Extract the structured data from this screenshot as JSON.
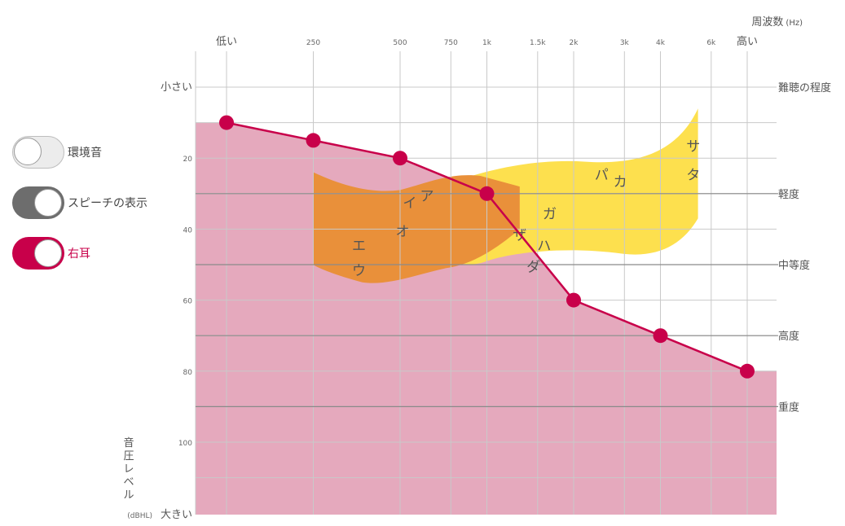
{
  "toggles": [
    {
      "label": "環境音",
      "state": "off"
    },
    {
      "label": "スピーチの表示",
      "state": "on"
    },
    {
      "label": "右耳",
      "state": "on"
    }
  ],
  "colors": {
    "accent": "#c8004a",
    "hearing_area": "#e5a9bd",
    "speech_yellow": "#fde04e",
    "speech_orange": "#e9903a",
    "toggle_gray": "#6d6d6d"
  },
  "chart_data": {
    "type": "line",
    "x_scale": "log",
    "y_inverted": true,
    "grid": true,
    "x_axis": {
      "title": "周波数",
      "unit": "(Hz)",
      "low_label": "低い",
      "high_label": "高い",
      "ticks": [
        {
          "freq": 250,
          "label": "250"
        },
        {
          "freq": 500,
          "label": "500"
        },
        {
          "freq": 750,
          "label": "750"
        },
        {
          "freq": 1000,
          "label": "1k"
        },
        {
          "freq": 1500,
          "label": "1.5k"
        },
        {
          "freq": 2000,
          "label": "2k"
        },
        {
          "freq": 3000,
          "label": "3k"
        },
        {
          "freq": 4000,
          "label": "4k"
        },
        {
          "freq": 6000,
          "label": "6k"
        }
      ]
    },
    "y_axis": {
      "title_chars": [
        "音",
        "圧",
        "レ",
        "ベ",
        "ル"
      ],
      "unit": "(dBHL)",
      "top_label": "小さい",
      "bottom_label": "大きい",
      "ticks": [
        20,
        40,
        60,
        80,
        100
      ],
      "ylim": [
        -10,
        120
      ]
    },
    "severity": {
      "title": "難聴の程度",
      "levels": [
        {
          "label": "軽度",
          "db": 30
        },
        {
          "label": "中等度",
          "db": 50
        },
        {
          "label": "高度",
          "db": 70
        },
        {
          "label": "重度",
          "db": 90
        }
      ]
    },
    "series": [
      {
        "name": "右耳",
        "x": [
          125,
          250,
          500,
          1000,
          2000,
          4000,
          8000
        ],
        "y": [
          10,
          15,
          20,
          30,
          60,
          70,
          80
        ]
      }
    ],
    "speech_sounds": [
      {
        "text": "ア",
        "freq": 620,
        "db": 32
      },
      {
        "text": "イ",
        "freq": 540,
        "db": 34
      },
      {
        "text": "オ",
        "freq": 510,
        "db": 42
      },
      {
        "text": "エ",
        "freq": 360,
        "db": 46
      },
      {
        "text": "ウ",
        "freq": 360,
        "db": 53
      },
      {
        "text": "ガ",
        "freq": 1650,
        "db": 37
      },
      {
        "text": "ザ",
        "freq": 1300,
        "db": 43
      },
      {
        "text": "ハ",
        "freq": 1580,
        "db": 46
      },
      {
        "text": "ダ",
        "freq": 1450,
        "db": 52
      },
      {
        "text": "パ",
        "freq": 2500,
        "db": 26
      },
      {
        "text": "カ",
        "freq": 2900,
        "db": 28
      },
      {
        "text": "サ",
        "freq": 5200,
        "db": 18
      },
      {
        "text": "タ",
        "freq": 5200,
        "db": 26
      }
    ]
  }
}
